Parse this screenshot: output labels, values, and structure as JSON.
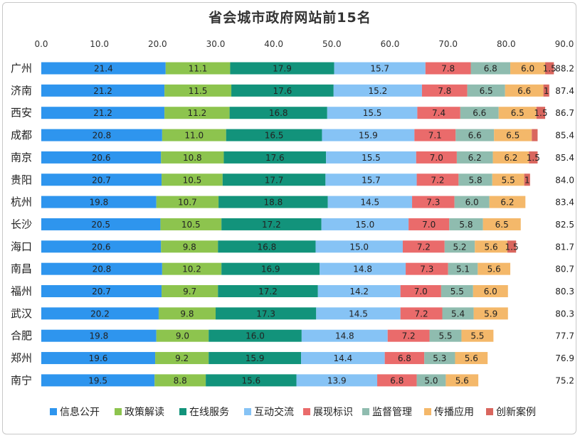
{
  "chart_data": {
    "type": "bar",
    "orientation": "horizontal",
    "stacked": true,
    "title": "省会城市政府网站前15名",
    "xlim": [
      0,
      90
    ],
    "xticks": [
      "0.0",
      "10.0",
      "20.0",
      "30.0",
      "40.0",
      "50.0",
      "60.0",
      "70.0",
      "80.0",
      "90.0"
    ],
    "categories": [
      "广州",
      "济南",
      "西安",
      "成都",
      "南京",
      "贵阳",
      "杭州",
      "长沙",
      "海口",
      "南昌",
      "福州",
      "武汉",
      "合肥",
      "郑州",
      "南宁"
    ],
    "totals": [
      "88.2",
      "87.4",
      "86.7",
      "85.4",
      "85.4",
      "84.0",
      "83.4",
      "82.5",
      "81.7",
      "80.7",
      "80.3",
      "80.3",
      "77.7",
      "76.9",
      "75.2"
    ],
    "legend_position": "bottom",
    "grid": false,
    "series": [
      {
        "name": "信息公开",
        "color": "#2e95ee",
        "values": [
          21.4,
          21.2,
          21.2,
          20.8,
          20.6,
          20.7,
          19.8,
          20.5,
          20.6,
          20.8,
          20.7,
          20.2,
          19.8,
          19.6,
          19.5
        ],
        "labels": [
          "21.4",
          "21.2",
          "21.2",
          "20.8",
          "20.6",
          "20.7",
          "19.8",
          "20.5",
          "20.6",
          "20.8",
          "20.7",
          "20.2",
          "19.8",
          "19.6",
          "19.5"
        ]
      },
      {
        "name": "政策解读",
        "color": "#8dc44e",
        "values": [
          11.1,
          11.5,
          11.2,
          11.0,
          10.8,
          10.5,
          10.7,
          10.5,
          9.8,
          10.2,
          9.7,
          9.8,
          9.0,
          9.2,
          8.8
        ],
        "labels": [
          "11.1",
          "11.5",
          "11.2",
          "11.0",
          "10.8",
          "10.5",
          "10.7",
          "10.5",
          "9.8",
          "10.2",
          "9.7",
          "9.8",
          "9.0",
          "9.2",
          "8.8"
        ]
      },
      {
        "name": "在线服务",
        "color": "#12937b",
        "values": [
          17.9,
          17.6,
          16.8,
          16.5,
          17.6,
          17.7,
          18.8,
          17.2,
          16.8,
          16.9,
          17.2,
          17.3,
          16.0,
          15.9,
          15.6
        ],
        "labels": [
          "17.9",
          "17.6",
          "16.8",
          "16.5",
          "17.6",
          "17.7",
          "18.8",
          "17.2",
          "16.8",
          "16.9",
          "17.2",
          "17.3",
          "16.0",
          "15.9",
          "15.6"
        ]
      },
      {
        "name": "互动交流",
        "color": "#86c3f5",
        "values": [
          15.7,
          15.2,
          15.5,
          15.9,
          15.5,
          15.7,
          14.5,
          15.0,
          15.0,
          14.8,
          14.2,
          14.5,
          14.8,
          14.4,
          13.9
        ],
        "labels": [
          "15.7",
          "15.2",
          "15.5",
          "15.9",
          "15.5",
          "15.7",
          "14.5",
          "15.0",
          "15.0",
          "14.8",
          "14.2",
          "14.5",
          "14.8",
          "14.4",
          "13.9"
        ]
      },
      {
        "name": "展现标识",
        "color": "#ea6b6b",
        "values": [
          7.8,
          7.8,
          7.4,
          7.1,
          7.0,
          7.2,
          7.3,
          7.0,
          7.2,
          7.3,
          7.0,
          7.2,
          7.2,
          6.8,
          6.8
        ],
        "labels": [
          "7.8",
          "7.8",
          "7.4",
          "7.1",
          "7.0",
          "7.2",
          "7.3",
          "7.0",
          "7.2",
          "7.3",
          "7.0",
          "7.2",
          "7.2",
          "6.8",
          "6.8"
        ]
      },
      {
        "name": "监督管理",
        "color": "#8fbcaf",
        "values": [
          6.8,
          6.5,
          6.6,
          6.6,
          6.2,
          5.8,
          6.0,
          5.8,
          5.2,
          5.1,
          5.5,
          5.4,
          5.5,
          5.3,
          5.0
        ],
        "labels": [
          "6.8",
          "6.5",
          "6.6",
          "6.6",
          "6.2",
          "5.8",
          "6.0",
          "5.8",
          "5.2",
          "5.1",
          "5.5",
          "5.4",
          "5.5",
          "5.3",
          "5.0"
        ]
      },
      {
        "name": "传播应用",
        "color": "#f4b86a",
        "values": [
          6.0,
          6.6,
          6.5,
          6.5,
          6.2,
          5.5,
          6.2,
          6.5,
          5.6,
          5.6,
          6.0,
          5.9,
          5.5,
          5.6,
          5.6
        ],
        "labels": [
          "6.0",
          "6.6",
          "6.5",
          "6.5",
          "6.2",
          "5.5",
          "6.2",
          "6.5",
          "5.6",
          "5.6",
          "6.0",
          "5.9",
          "5.5",
          "5.6",
          "5.6"
        ]
      },
      {
        "name": "创新案例",
        "color": "#d9665e",
        "values": [
          1.5,
          1.0,
          1.5,
          1.0,
          1.5,
          1.0,
          0,
          0,
          1.5,
          0,
          0,
          0,
          0,
          0,
          0
        ],
        "labels": [
          "1.5",
          "1",
          "1.5",
          "",
          "1.5",
          "1",
          "",
          "",
          "1.5",
          "",
          "",
          "",
          "",
          "",
          ""
        ]
      }
    ]
  }
}
